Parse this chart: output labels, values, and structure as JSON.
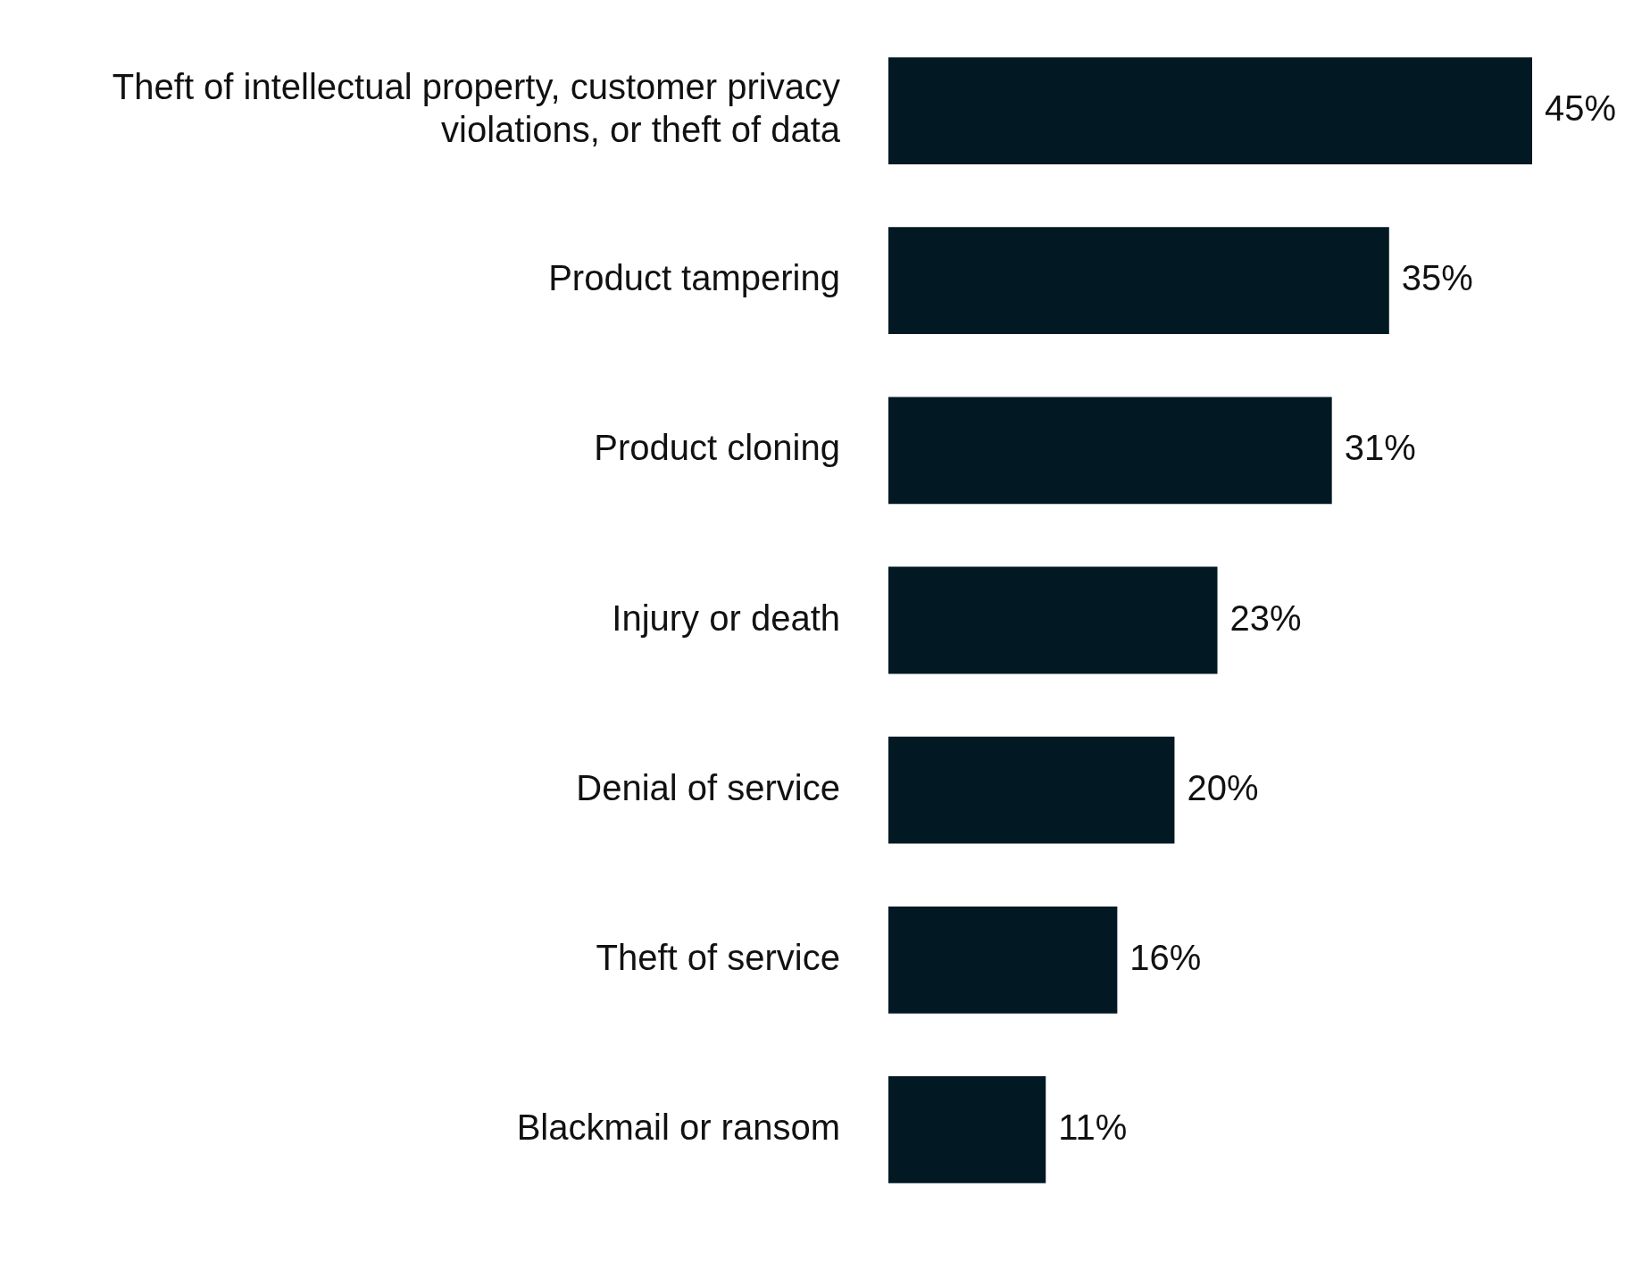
{
  "chart_data": {
    "type": "bar",
    "orientation": "horizontal",
    "categories": [
      "Theft of intellectual property, customer privacy violations, or theft of data",
      "Product tampering",
      "Product cloning",
      "Injury or death",
      "Denial of service",
      "Theft of service",
      "Blackmail or ransom"
    ],
    "values": [
      45,
      35,
      31,
      23,
      20,
      16,
      11
    ],
    "value_labels": [
      "45%",
      "35%",
      "31%",
      "23%",
      "20%",
      "16%",
      "11%"
    ],
    "color": "#021822",
    "tick_labels": "y"
  }
}
